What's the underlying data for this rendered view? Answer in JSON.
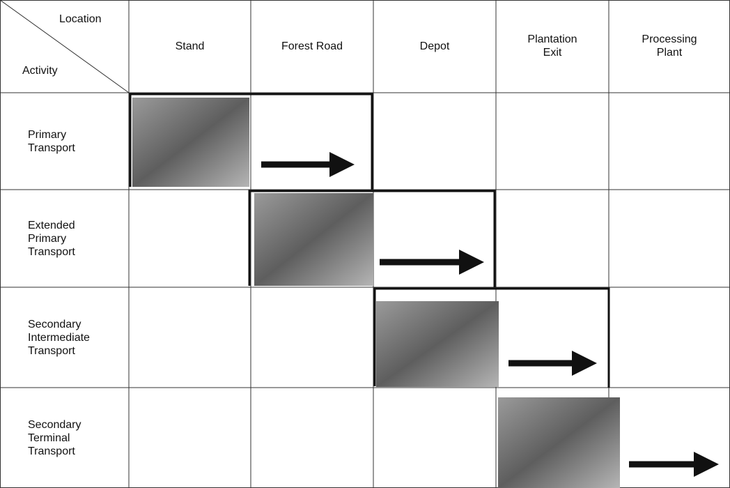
{
  "table": {
    "corner": {
      "column_header": "Location",
      "row_header": "Activity"
    },
    "columns": [
      "Stand",
      "Forest Road",
      "Depot",
      "Plantation Exit",
      "Processing Plant"
    ],
    "rows": [
      "Primary Transport",
      "Extended Primary Transport",
      "Secondary Intermediate Transport",
      "Secondary Terminal Transport"
    ]
  }
}
